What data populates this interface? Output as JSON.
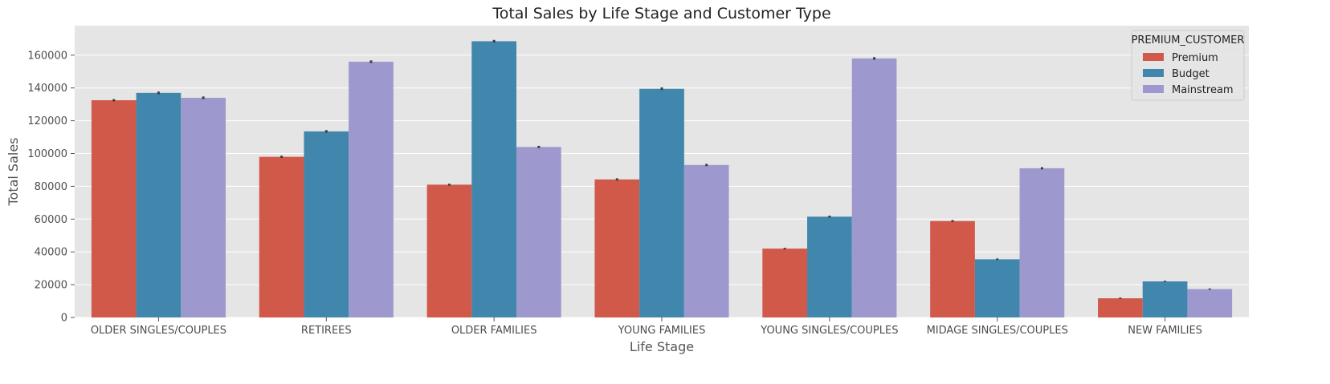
{
  "chart_data": {
    "type": "bar",
    "title": "Total Sales by Life Stage and Customer Type",
    "xlabel": "Life Stage",
    "ylabel": "Total Sales",
    "ylim": [
      0,
      178000
    ],
    "yticks": [
      0,
      20000,
      40000,
      60000,
      80000,
      100000,
      120000,
      140000,
      160000
    ],
    "grid": true,
    "legend": {
      "title": "PREMIUM_CUSTOMER",
      "placement": "top-right"
    },
    "categories": [
      "OLDER SINGLES/COUPLES",
      "RETIREES",
      "OLDER FAMILIES",
      "YOUNG FAMILIES",
      "YOUNG SINGLES/COUPLES",
      "MIDAGE SINGLES/COUPLES",
      "NEW FAMILIES"
    ],
    "series": [
      {
        "name": "Premium",
        "color": "#d1594a",
        "values": [
          132500,
          98000,
          81000,
          84200,
          42000,
          58800,
          11700
        ],
        "error": [
          700,
          700,
          600,
          700,
          500,
          600,
          400
        ]
      },
      {
        "name": "Budget",
        "color": "#4187ad",
        "values": [
          137000,
          113500,
          168500,
          139500,
          61500,
          35500,
          22000
        ],
        "error": [
          800,
          800,
          800,
          800,
          600,
          500,
          400
        ]
      },
      {
        "name": "Mainstream",
        "color": "#9d98cd",
        "values": [
          134000,
          156000,
          104000,
          93000,
          158000,
          91000,
          17300
        ],
        "error": [
          800,
          800,
          700,
          700,
          800,
          700,
          400
        ]
      }
    ]
  }
}
